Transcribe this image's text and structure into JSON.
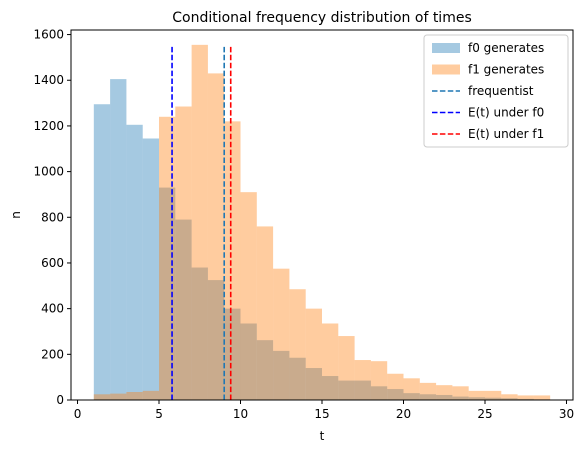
{
  "chart_data": {
    "type": "bar",
    "title": "Conditional frequency distribution of times",
    "xlabel": "t",
    "ylabel": "n",
    "xlim": [
      -0.4,
      30.4
    ],
    "ylim": [
      0,
      1620
    ],
    "x_ticks": [
      0,
      5,
      10,
      15,
      20,
      25,
      30
    ],
    "y_ticks": [
      0,
      200,
      400,
      600,
      800,
      1000,
      1200,
      1400,
      1600
    ],
    "legend_position": "top-right",
    "series": [
      {
        "name": "f0 generates",
        "color": "#1f77b4",
        "alpha": 0.4,
        "bin_edges": [
          1,
          2,
          3,
          4,
          5,
          6,
          7,
          8,
          9,
          10,
          11,
          12,
          13,
          14,
          15,
          16,
          17,
          18,
          19,
          20,
          21,
          22,
          23,
          24,
          25,
          26,
          27,
          28,
          29
        ],
        "values": [
          1295,
          1405,
          1205,
          1145,
          930,
          790,
          580,
          525,
          400,
          335,
          262,
          215,
          185,
          140,
          105,
          85,
          85,
          60,
          48,
          30,
          25,
          22,
          15,
          12,
          10,
          8,
          5,
          3
        ]
      },
      {
        "name": "f1 generates",
        "color": "#ff7f0e",
        "alpha": 0.4,
        "bin_edges": [
          1,
          2,
          3,
          4,
          5,
          6,
          7,
          8,
          9,
          10,
          11,
          12,
          13,
          14,
          15,
          16,
          17,
          18,
          19,
          20,
          21,
          22,
          23,
          24,
          25,
          26,
          27,
          28,
          29
        ],
        "values": [
          25,
          28,
          35,
          40,
          1240,
          1285,
          1555,
          1430,
          1220,
          910,
          760,
          575,
          485,
          400,
          335,
          280,
          175,
          170,
          115,
          95,
          75,
          65,
          60,
          40,
          40,
          25,
          20,
          20
        ]
      }
    ],
    "vlines": [
      {
        "name": "frequentist",
        "x": 9.0,
        "color": "#1f77b4",
        "y_top": 1555
      },
      {
        "name": "E(t) under f0",
        "x": 5.8,
        "color": "#0000ff",
        "y_top": 1555
      },
      {
        "name": "E(t) under f1",
        "x": 9.4,
        "color": "#ff0000",
        "y_top": 1555
      }
    ]
  }
}
